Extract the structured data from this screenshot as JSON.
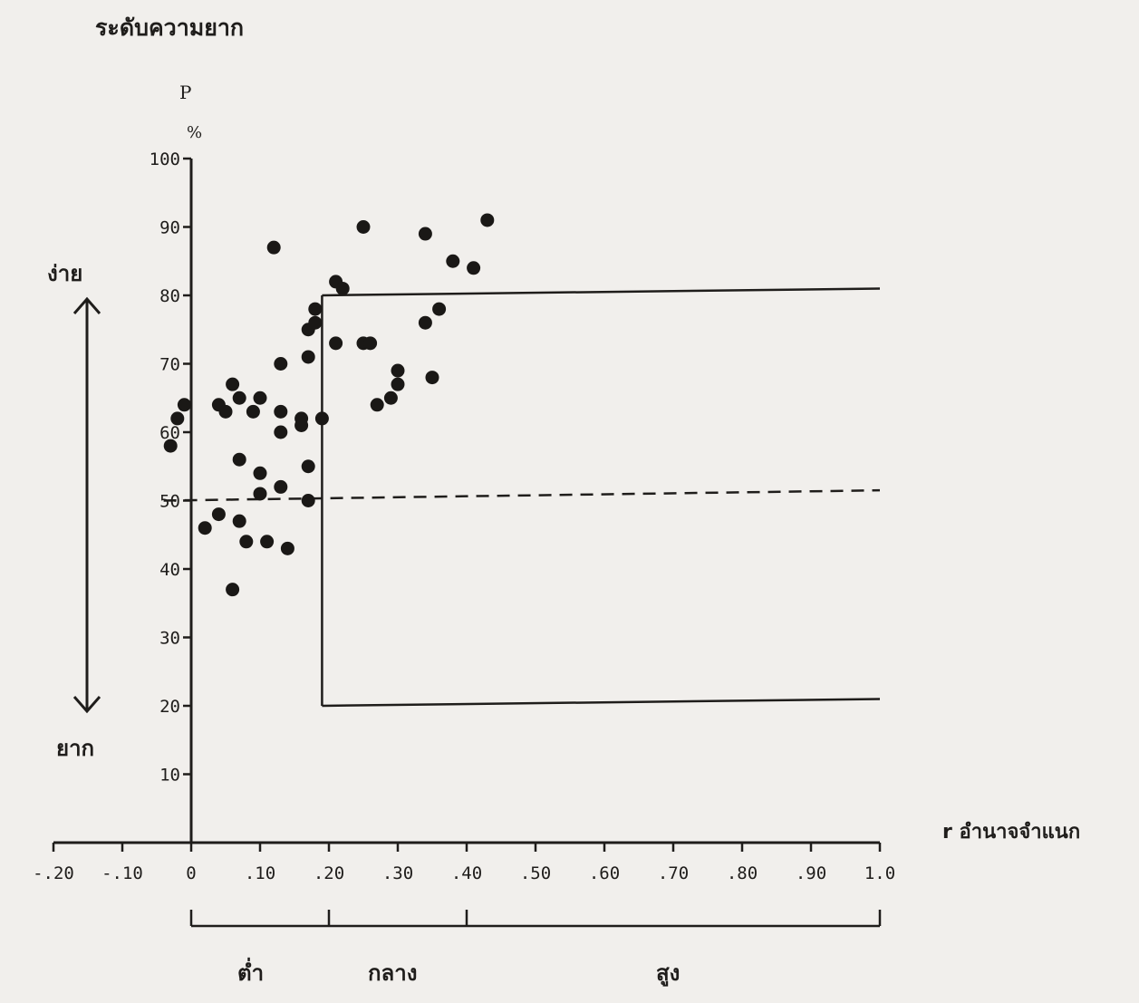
{
  "labels": {
    "title": "ระดับความยาก",
    "p_letter": "P",
    "percent_sign": "%",
    "easy": "ง่าย",
    "hard": "ยาก",
    "x_axis": "r อำนาจจำแนก",
    "band_low": "ต่ำ",
    "band_mid": "กลาง",
    "band_high": "สูง"
  },
  "chart_data": {
    "type": "scatter",
    "title": "ระดับความยาก",
    "ylabel": "P %",
    "xlabel": "r อำนาจจำแนก",
    "xlim": [
      -0.2,
      1.0
    ],
    "ylim": [
      0,
      100
    ],
    "x_tick_labels": [
      "-.20",
      "-.10",
      "0",
      ".10",
      ".20",
      ".30",
      ".40",
      ".50",
      ".60",
      ".70",
      ".80",
      ".90",
      "1.0"
    ],
    "y_tick_labels": [
      "10",
      "20",
      "30",
      "40",
      "50",
      "60",
      "70",
      "80",
      "90",
      "100"
    ],
    "x_ticks": [
      -0.2,
      -0.1,
      0,
      0.1,
      0.2,
      0.3,
      0.4,
      0.5,
      0.6,
      0.7,
      0.8,
      0.9,
      1.0
    ],
    "y_ticks": [
      10,
      20,
      30,
      40,
      50,
      60,
      70,
      80,
      90,
      100
    ],
    "points": [
      {
        "x": -0.03,
        "y": 58
      },
      {
        "x": -0.02,
        "y": 62
      },
      {
        "x": -0.01,
        "y": 64
      },
      {
        "x": 0.02,
        "y": 46
      },
      {
        "x": 0.04,
        "y": 48
      },
      {
        "x": 0.04,
        "y": 64
      },
      {
        "x": 0.05,
        "y": 63
      },
      {
        "x": 0.06,
        "y": 37
      },
      {
        "x": 0.06,
        "y": 67
      },
      {
        "x": 0.07,
        "y": 47
      },
      {
        "x": 0.07,
        "y": 65
      },
      {
        "x": 0.07,
        "y": 56
      },
      {
        "x": 0.08,
        "y": 44
      },
      {
        "x": 0.09,
        "y": 63
      },
      {
        "x": 0.1,
        "y": 65
      },
      {
        "x": 0.1,
        "y": 54
      },
      {
        "x": 0.1,
        "y": 51
      },
      {
        "x": 0.11,
        "y": 44
      },
      {
        "x": 0.12,
        "y": 87
      },
      {
        "x": 0.13,
        "y": 52
      },
      {
        "x": 0.13,
        "y": 60
      },
      {
        "x": 0.13,
        "y": 63
      },
      {
        "x": 0.13,
        "y": 70
      },
      {
        "x": 0.14,
        "y": 43
      },
      {
        "x": 0.16,
        "y": 61
      },
      {
        "x": 0.16,
        "y": 62
      },
      {
        "x": 0.17,
        "y": 71
      },
      {
        "x": 0.17,
        "y": 75
      },
      {
        "x": 0.17,
        "y": 55
      },
      {
        "x": 0.17,
        "y": 50
      },
      {
        "x": 0.18,
        "y": 76
      },
      {
        "x": 0.18,
        "y": 78
      },
      {
        "x": 0.19,
        "y": 62
      },
      {
        "x": 0.21,
        "y": 82
      },
      {
        "x": 0.22,
        "y": 81
      },
      {
        "x": 0.21,
        "y": 73
      },
      {
        "x": 0.25,
        "y": 90
      },
      {
        "x": 0.25,
        "y": 73
      },
      {
        "x": 0.26,
        "y": 73
      },
      {
        "x": 0.27,
        "y": 64
      },
      {
        "x": 0.29,
        "y": 65
      },
      {
        "x": 0.3,
        "y": 67
      },
      {
        "x": 0.3,
        "y": 69
      },
      {
        "x": 0.34,
        "y": 89
      },
      {
        "x": 0.34,
        "y": 76
      },
      {
        "x": 0.35,
        "y": 68
      },
      {
        "x": 0.36,
        "y": 78
      },
      {
        "x": 0.38,
        "y": 85
      },
      {
        "x": 0.41,
        "y": 84
      },
      {
        "x": 0.43,
        "y": 91
      }
    ],
    "reference_lines": [
      {
        "style": "dashed",
        "from": [
          -0.04,
          50
        ],
        "to": [
          1.0,
          51.5
        ]
      },
      {
        "style": "solid",
        "from": [
          0.19,
          80
        ],
        "to": [
          1.0,
          81
        ]
      },
      {
        "style": "solid",
        "from": [
          0.19,
          80
        ],
        "to": [
          0.19,
          20
        ]
      },
      {
        "style": "solid",
        "from": [
          0.19,
          20
        ],
        "to": [
          1.0,
          21
        ]
      }
    ],
    "bands": [
      {
        "label": "ต่ำ",
        "from": 0,
        "to": 0.2
      },
      {
        "label": "กลาง",
        "from": 0.2,
        "to": 0.4
      },
      {
        "label": "สูง",
        "from": 0.4,
        "to": 1.0
      }
    ]
  }
}
